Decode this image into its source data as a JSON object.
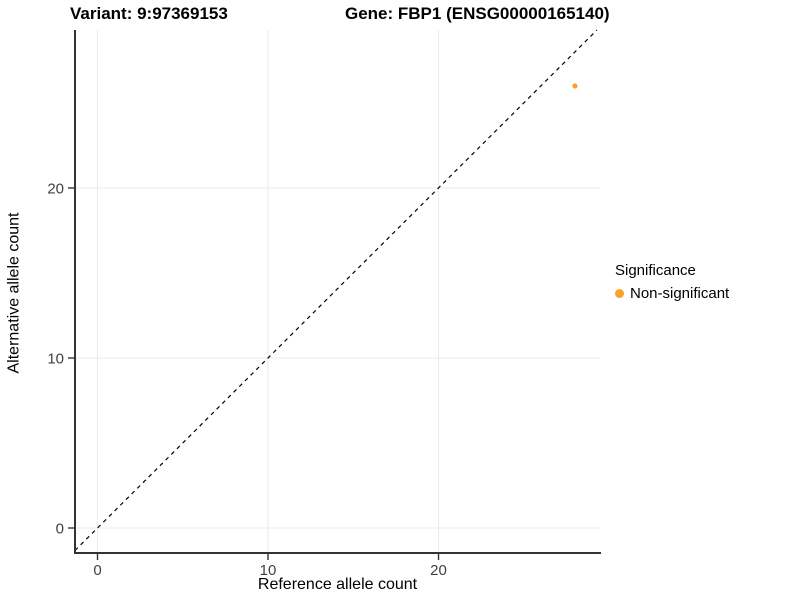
{
  "titles": {
    "variant": "Variant: 9:97369153",
    "gene": "Gene: FBP1 (ENSG00000165140)"
  },
  "legend": {
    "title": "Significance",
    "items": [
      {
        "label": "Non-significant",
        "color": "#F9A12B"
      }
    ]
  },
  "colors": {
    "point": "#F9A12B",
    "gridline": "#EBEBEB",
    "axis": "#333333",
    "tick_label": "#404040",
    "reference_line": "#000000"
  },
  "chart_data": {
    "type": "scatter",
    "title": "Variant: 9:97369153    Gene: FBP1 (ENSG00000165140)",
    "xlabel": "Reference allele count",
    "ylabel": "Alternative allele count",
    "xlim": [
      -1.32,
      29.47
    ],
    "ylim": [
      -1.47,
      29.29
    ],
    "xticks": [
      0,
      10,
      20
    ],
    "yticks": [
      0,
      10,
      20
    ],
    "grid": true,
    "legend_position": "right",
    "series": [
      {
        "name": "Non-significant",
        "color": "#F9A12B",
        "points": [
          {
            "x": 28,
            "y": 26
          }
        ]
      }
    ],
    "reference_line": {
      "slope": 1,
      "intercept": 0,
      "style": "dashed",
      "color": "#000000"
    }
  }
}
